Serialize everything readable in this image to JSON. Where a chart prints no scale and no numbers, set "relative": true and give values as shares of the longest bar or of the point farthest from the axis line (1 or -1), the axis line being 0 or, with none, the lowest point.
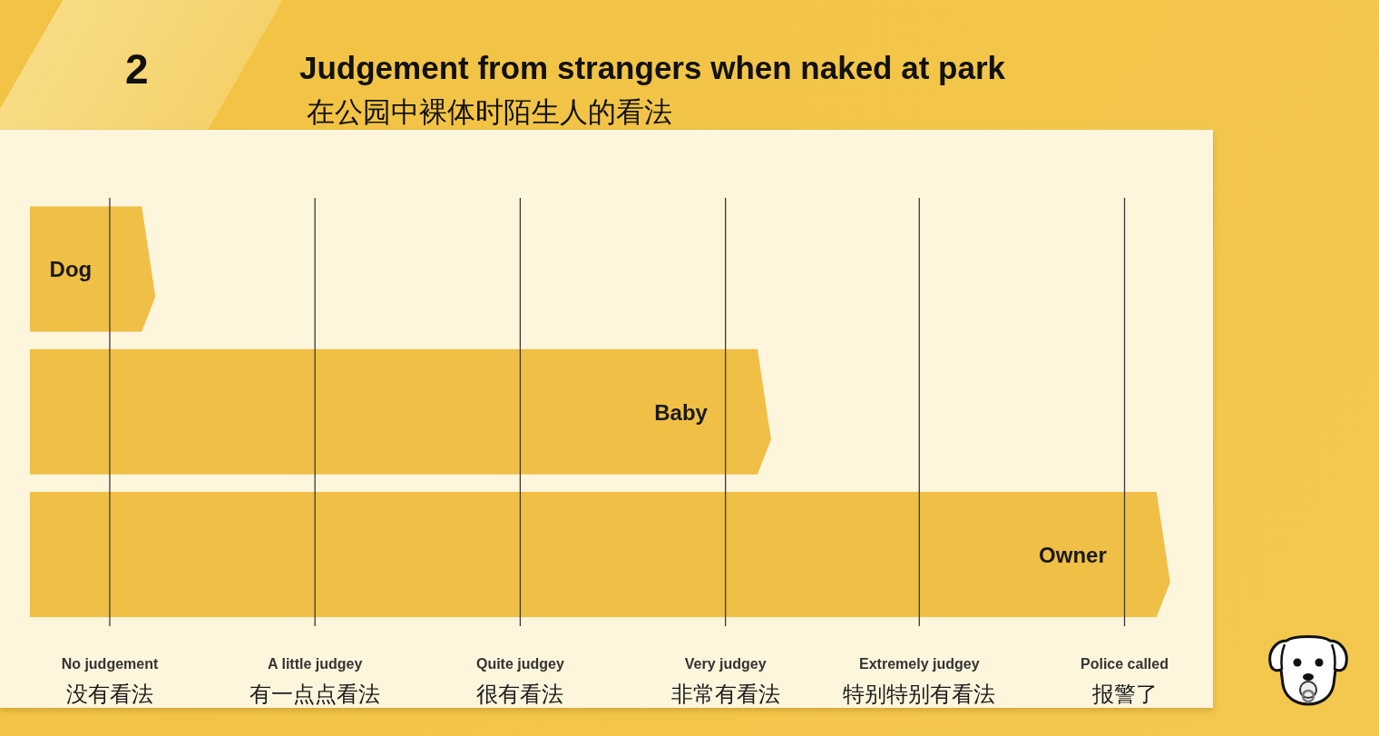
{
  "chart_data": {
    "type": "bar",
    "orientation": "horizontal",
    "relative": true,
    "title": "Judgement from strangers when naked at park",
    "subtitle": "在公园中裸体时陌生人的看法",
    "annotations": [
      "2"
    ],
    "categories": [
      "Dog",
      "Baby",
      "Owner"
    ],
    "values": [
      0.11,
      0.65,
      1
    ],
    "color": "#f0bf45",
    "ref_lines": [
      {
        "axis": "x",
        "value": 0.07,
        "label": "No judgement\n没有看法"
      },
      {
        "axis": "x",
        "value": 0.25,
        "label": "A little judgey\n有一点点看法"
      },
      {
        "axis": "x",
        "value": 0.43,
        "label": "Quite judgey\n很有看法"
      },
      {
        "axis": "x",
        "value": 0.61,
        "label": "Very judgey\n非常有看法"
      },
      {
        "axis": "x",
        "value": 0.78,
        "label": "Extremely judgey\n特别特别有看法"
      },
      {
        "axis": "x",
        "value": 0.96,
        "label": "Police called\n报警了"
      }
    ],
    "tick_labels": false
  }
}
